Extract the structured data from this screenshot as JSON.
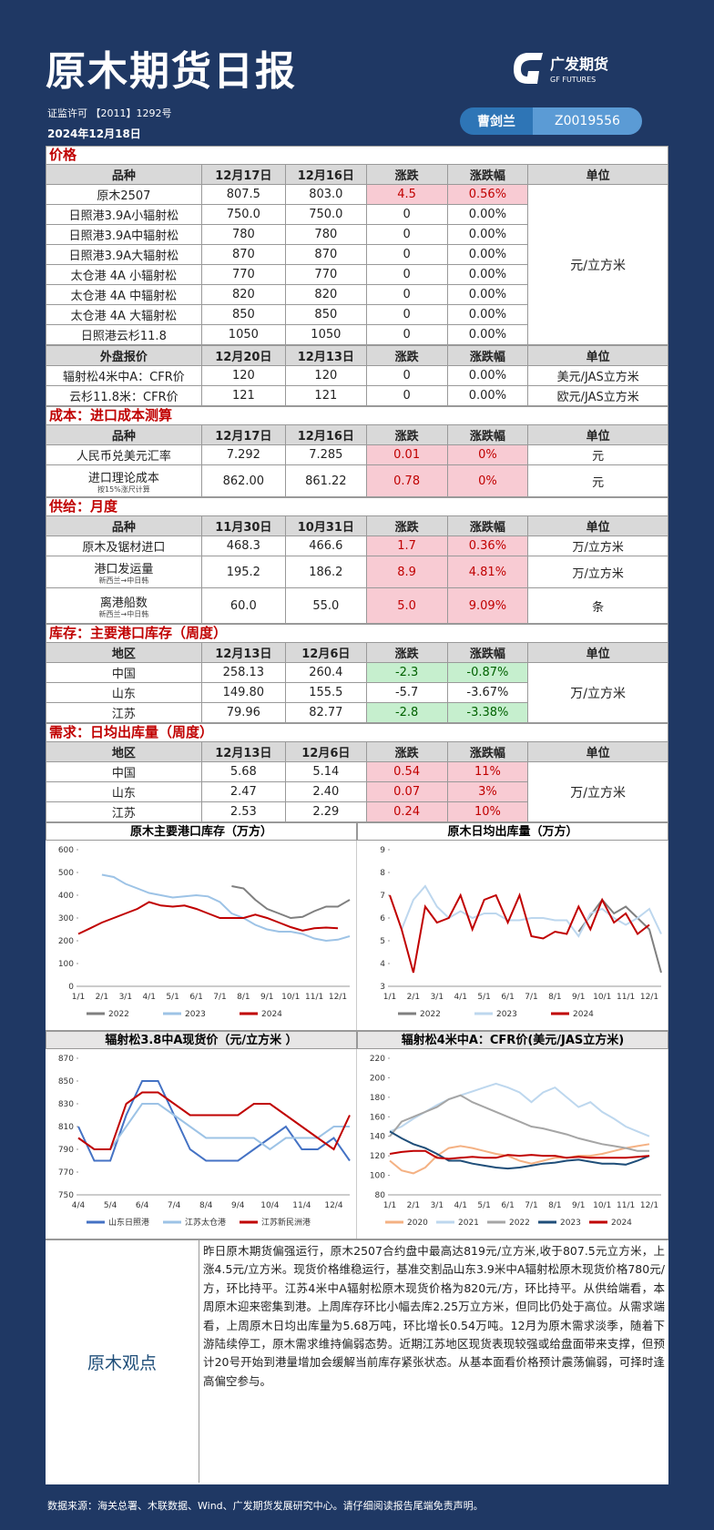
{
  "header": {
    "title": "原木期货日报",
    "license": "证监许可 【2011】1292号",
    "date": "2024年12月18日",
    "author": "曹剑兰",
    "author_id": "Z0019556",
    "logo": "广发期货",
    "logo_en": "GF FUTURES"
  },
  "sections": [
    {
      "title": "价格",
      "blocks": [
        {
          "header": [
            "品种",
            "12月17日",
            "12月16日",
            "涨跌",
            "涨跌幅",
            "单位"
          ],
          "merged_unit": "元/立方米",
          "rows": [
            {
              "cells": [
                "原木2507",
                "807.5",
                "803.0",
                "4.5",
                "0.56%"
              ],
              "highlight": "red"
            },
            {
              "cells": [
                "日照港3.9A小辐射松",
                "750.0",
                "750.0",
                "0",
                "0.00%"
              ]
            },
            {
              "cells": [
                "日照港3.9A中辐射松",
                "780",
                "780",
                "0",
                "0.00%"
              ]
            },
            {
              "cells": [
                "日照港3.9A大辐射松",
                "870",
                "870",
                "0",
                "0.00%"
              ]
            },
            {
              "cells": [
                "太仓港 4A 小辐射松",
                "770",
                "770",
                "0",
                "0.00%"
              ]
            },
            {
              "cells": [
                "太仓港 4A 中辐射松",
                "820",
                "820",
                "0",
                "0.00%"
              ]
            },
            {
              "cells": [
                "太仓港 4A 大辐射松",
                "850",
                "850",
                "0",
                "0.00%"
              ]
            },
            {
              "cells": [
                "日照港云杉11.8",
                "1050",
                "1050",
                "0",
                "0.00%"
              ]
            }
          ]
        },
        {
          "header": [
            "外盘报价",
            "12月20日",
            "12月13日",
            "涨跌",
            "涨跌幅",
            "单位"
          ],
          "rows": [
            {
              "cells": [
                "辐射松4米中A：CFR价",
                "120",
                "120",
                "0",
                "0.00%"
              ],
              "unit": "美元/JAS立方米"
            },
            {
              "cells": [
                "云杉11.8米：CFR价",
                "121",
                "121",
                "0",
                "0.00%"
              ],
              "unit": "欧元/JAS立方米"
            }
          ]
        }
      ]
    },
    {
      "title": "成本：进口成本测算",
      "blocks": [
        {
          "header": [
            "品种",
            "12月17日",
            "12月16日",
            "涨跌",
            "涨跌幅",
            "单位"
          ],
          "rows": [
            {
              "cells": [
                "人民币兑美元汇率",
                "7.292",
                "7.285",
                "0.01",
                "0%"
              ],
              "unit": "元",
              "highlight": "red"
            },
            {
              "cells": [
                "进口理论成本",
                "862.00",
                "861.22",
                "0.78",
                "0%"
              ],
              "note": "按15%涨尺计算",
              "unit": "元",
              "highlight": "red"
            }
          ]
        }
      ]
    },
    {
      "title": "供给：月度",
      "blocks": [
        {
          "header": [
            "品种",
            "11月30日",
            "10月31日",
            "涨跌",
            "涨跌幅",
            "单位"
          ],
          "rows": [
            {
              "cells": [
                "原木及锯材进口",
                "468.3",
                "466.6",
                "1.7",
                "0.36%"
              ],
              "unit": "万/立方米",
              "highlight": "red"
            },
            {
              "cells": [
                "港口发运量",
                "195.2",
                "186.2",
                "8.9",
                "4.81%"
              ],
              "note": "新西兰→中日韩",
              "unit": "万/立方米",
              "highlight": "red"
            },
            {
              "cells": [
                "离港船数",
                "60.0",
                "55.0",
                "5.0",
                "9.09%"
              ],
              "note": "新西兰→中日韩",
              "unit": "条",
              "highlight": "red"
            }
          ]
        }
      ]
    },
    {
      "title": "库存：主要港口库存（周度）",
      "blocks": [
        {
          "header": [
            "地区",
            "12月13日",
            "12月6日",
            "涨跌",
            "涨跌幅",
            "单位"
          ],
          "merged_unit": "万/立方米",
          "rows": [
            {
              "cells": [
                "中国",
                "258.13",
                "260.4",
                "-2.3",
                "-0.87%"
              ],
              "highlight": "green"
            },
            {
              "cells": [
                "山东",
                "149.80",
                "155.5",
                "-5.7",
                "-3.67%"
              ]
            },
            {
              "cells": [
                "江苏",
                "79.96",
                "82.77",
                "-2.8",
                "-3.38%"
              ],
              "highlight": "green"
            }
          ]
        }
      ]
    },
    {
      "title": "需求：日均出库量（周度）",
      "blocks": [
        {
          "header": [
            "地区",
            "12月13日",
            "12月6日",
            "涨跌",
            "涨跌幅",
            "单位"
          ],
          "merged_unit": "万/立方米",
          "rows": [
            {
              "cells": [
                "中国",
                "5.68",
                "5.14",
                "0.54",
                "11%"
              ],
              "highlight": "red"
            },
            {
              "cells": [
                "山东",
                "2.47",
                "2.40",
                "0.07",
                "3%"
              ],
              "highlight": "red"
            },
            {
              "cells": [
                "江苏",
                "2.53",
                "2.29",
                "0.24",
                "10%"
              ],
              "highlight": "red"
            }
          ]
        }
      ]
    }
  ],
  "charts": [
    {
      "type": "line",
      "title": "原木主要港口库存（万方）",
      "categories": [
        "1/1",
        null,
        "2/1",
        null,
        "3/1",
        null,
        "4/1",
        null,
        "5/1",
        null,
        "6/1",
        null,
        "7/1",
        null,
        "8/1",
        null,
        "9/1",
        null,
        "10/1",
        null,
        "11/1",
        null,
        "12/1",
        null
      ],
      "ylim": [
        0,
        600
      ],
      "yticks": [
        0,
        100,
        200,
        300,
        400,
        500,
        600
      ],
      "series": [
        {
          "name": "2022",
          "color": "#7f7f7f",
          "values": [
            null,
            null,
            null,
            null,
            null,
            null,
            null,
            null,
            null,
            null,
            null,
            null,
            null,
            440,
            430,
            380,
            340,
            320,
            300,
            305,
            330,
            350,
            350,
            380
          ]
        },
        {
          "name": "2023",
          "color": "#9dc3e6",
          "values": [
            null,
            null,
            490,
            480,
            450,
            430,
            410,
            400,
            390,
            395,
            400,
            395,
            370,
            320,
            300,
            270,
            250,
            240,
            240,
            230,
            210,
            200,
            205,
            220
          ]
        },
        {
          "name": "2024",
          "color": "#c00000",
          "values": [
            230,
            255,
            280,
            300,
            320,
            340,
            370,
            355,
            350,
            355,
            340,
            320,
            300,
            300,
            300,
            315,
            300,
            280,
            260,
            245,
            255,
            258,
            255,
            null
          ]
        }
      ]
    },
    {
      "type": "line",
      "title": "原木日均出库量（万方）",
      "categories": [
        "1/1",
        null,
        "2/1",
        null,
        "3/1",
        null,
        "4/1",
        null,
        "5/1",
        null,
        "6/1",
        null,
        "7/1",
        null,
        "8/1",
        null,
        "9/1",
        null,
        "10/1",
        null,
        "11/1",
        null,
        "12/1",
        null
      ],
      "ylim": [
        3,
        9
      ],
      "yticks": [
        3,
        4,
        5,
        6,
        7,
        8,
        9
      ],
      "series": [
        {
          "name": "2022",
          "color": "#7f7f7f",
          "values": [
            null,
            null,
            null,
            null,
            null,
            null,
            null,
            null,
            null,
            null,
            null,
            null,
            null,
            null,
            null,
            null,
            5.4,
            6.1,
            6.8,
            6.2,
            6.5,
            6,
            5.5,
            3.6
          ]
        },
        {
          "name": "2023",
          "color": "#bdd7ee",
          "values": [
            null,
            5.5,
            6.8,
            7.4,
            6.5,
            6,
            6.3,
            6,
            6.2,
            6.2,
            5.9,
            5.9,
            6,
            6,
            5.9,
            5.9,
            5.2,
            6.2,
            6.4,
            6,
            5.7,
            6,
            6.4,
            5.3
          ]
        },
        {
          "name": "2024",
          "color": "#c00000",
          "values": [
            7,
            5.5,
            3.6,
            6.5,
            5.8,
            6,
            7,
            5.5,
            6.8,
            7,
            5.8,
            7,
            5.2,
            5.1,
            5.4,
            5.3,
            6.5,
            5.5,
            6.8,
            5.8,
            6.2,
            5.3,
            5.7,
            null
          ]
        }
      ]
    },
    {
      "type": "line",
      "title": "辐射松3.8中A现货价（元/立方米 ）",
      "categories": [
        "4/4",
        null,
        "5/4",
        null,
        "6/4",
        null,
        "7/4",
        null,
        "8/4",
        null,
        "9/4",
        null,
        "10/4",
        null,
        "11/4",
        null,
        "12/4",
        null
      ],
      "ylim": [
        750,
        870
      ],
      "yticks": [
        750,
        770,
        790,
        810,
        830,
        850,
        870
      ],
      "series": [
        {
          "name": "山东日照港",
          "color": "#4472c4",
          "values": [
            810,
            780,
            780,
            820,
            850,
            850,
            820,
            790,
            780,
            780,
            780,
            790,
            800,
            810,
            790,
            790,
            800,
            780
          ]
        },
        {
          "name": "江苏太仓港",
          "color": "#9dc3e6",
          "values": [
            800,
            790,
            790,
            810,
            830,
            830,
            820,
            810,
            800,
            800,
            800,
            800,
            790,
            800,
            800,
            800,
            810,
            810
          ]
        },
        {
          "name": "江苏新民洲港",
          "color": "#c00000",
          "values": [
            800,
            790,
            790,
            830,
            840,
            840,
            830,
            820,
            820,
            820,
            820,
            830,
            830,
            820,
            810,
            800,
            790,
            820
          ]
        }
      ]
    },
    {
      "type": "line",
      "title": "辐射松4米中A：CFR价(美元/JAS立方米)",
      "categories": [
        "1/1",
        null,
        "2/1",
        null,
        "3/1",
        null,
        "4/1",
        null,
        "5/1",
        null,
        "6/1",
        null,
        "7/1",
        null,
        "8/1",
        null,
        "9/1",
        null,
        "10/1",
        null,
        "11/1",
        null,
        "12/1",
        null
      ],
      "ylim": [
        80,
        220
      ],
      "yticks": [
        80,
        100,
        120,
        140,
        160,
        180,
        200,
        220
      ],
      "series": [
        {
          "name": "2020",
          "color": "#f4b183",
          "values": [
            115,
            105,
            102,
            108,
            120,
            128,
            130,
            128,
            125,
            122,
            120,
            115,
            112,
            115,
            118,
            118,
            120,
            120,
            122,
            125,
            128,
            130,
            132,
            null
          ]
        },
        {
          "name": "2021",
          "color": "#bdd7ee",
          "values": [
            145,
            150,
            158,
            165,
            172,
            178,
            182,
            186,
            190,
            194,
            190,
            185,
            175,
            185,
            190,
            180,
            170,
            175,
            165,
            158,
            150,
            145,
            140,
            null
          ]
        },
        {
          "name": "2022",
          "color": "#a5a5a5",
          "values": [
            140,
            155,
            160,
            165,
            170,
            178,
            182,
            175,
            170,
            165,
            160,
            155,
            150,
            148,
            145,
            142,
            138,
            135,
            132,
            130,
            128,
            125,
            125,
            null
          ]
        },
        {
          "name": "2023",
          "color": "#1f4e79",
          "values": [
            145,
            138,
            132,
            128,
            122,
            115,
            115,
            112,
            110,
            108,
            107,
            108,
            110,
            112,
            113,
            115,
            116,
            114,
            112,
            112,
            111,
            115,
            120,
            null
          ]
        },
        {
          "name": "2024",
          "color": "#c00000",
          "values": [
            122,
            124,
            125,
            125,
            118,
            117,
            118,
            119,
            118,
            118,
            121,
            120,
            121,
            120,
            120,
            118,
            119,
            118,
            118,
            118,
            118,
            119,
            120,
            null
          ]
        }
      ]
    }
  ],
  "opinion": {
    "label": "原木观点",
    "text": "昨日原木期货偏强运行，原木2507合约盘中最高达819元/立方米,收于807.5元立方米，上涨4.5元/立方米。现货价格维稳运行，基准交割品山东3.9米中A辐射松原木现货价格780元/方，环比持平。江苏4米中A辐射松原木现货价格为820元/方，环比持平。从供给端看，本周原木迎来密集到港。上周库存环比小幅去库2.25万立方米，但同比仍处于高位。从需求端看，上周原木日均出库量为5.68万吨，环比增长0.54万吨。12月为原木需求淡季，随着下游陆续停工，原木需求维持偏弱态势。近期江苏地区现货表现较强或给盘面带来支撑，但预计20号开始到港量增加会缓解当前库存紧张状态。从基本面看价格预计震荡偏弱，可择时逢高偏空参与。"
  },
  "footer": "数据来源：海关总署、木联数据、Wind、广发期货发展研究中心。请仔细阅读报告尾端免责声明。"
}
